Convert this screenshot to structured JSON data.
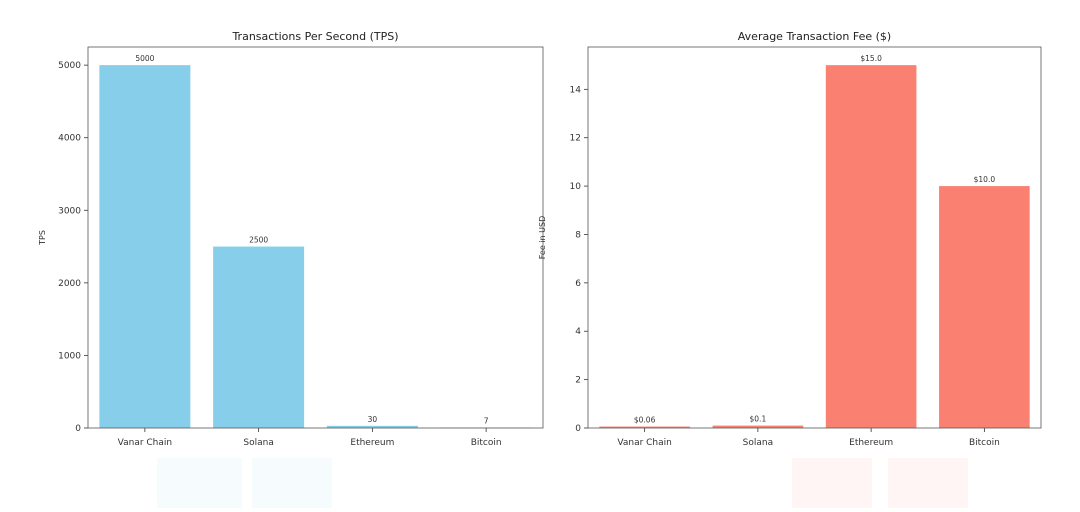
{
  "chart_data": [
    {
      "type": "bar",
      "title": "Transactions Per Second (TPS)",
      "xlabel": "",
      "ylabel": "TPS",
      "categories": [
        "Vanar Chain",
        "Solana",
        "Ethereum",
        "Bitcoin"
      ],
      "values": [
        5000,
        2500,
        30,
        7
      ],
      "data_labels": [
        "5000",
        "2500",
        "30",
        "7"
      ],
      "yticks": [
        0,
        1000,
        2000,
        3000,
        4000,
        5000
      ],
      "ytick_labels": [
        "0",
        "1000",
        "2000",
        "3000",
        "4000",
        "5000"
      ],
      "ylim": [
        0,
        5250
      ],
      "bar_color": "#87CEEB",
      "grid": false
    },
    {
      "type": "bar",
      "title": "Average Transaction Fee ($)",
      "xlabel": "",
      "ylabel": "Fee in USD",
      "categories": [
        "Vanar Chain",
        "Solana",
        "Ethereum",
        "Bitcoin"
      ],
      "values": [
        0.06,
        0.1,
        15.0,
        10.0
      ],
      "data_labels": [
        "$0.06",
        "$0.1",
        "$15.0",
        "$10.0"
      ],
      "yticks": [
        0,
        2,
        4,
        6,
        8,
        10,
        12,
        14
      ],
      "ytick_labels": [
        "0",
        "2",
        "4",
        "6",
        "8",
        "10",
        "12",
        "14"
      ],
      "ylim": [
        0,
        15.75
      ],
      "bar_color": "#FA8072",
      "grid": false
    }
  ]
}
